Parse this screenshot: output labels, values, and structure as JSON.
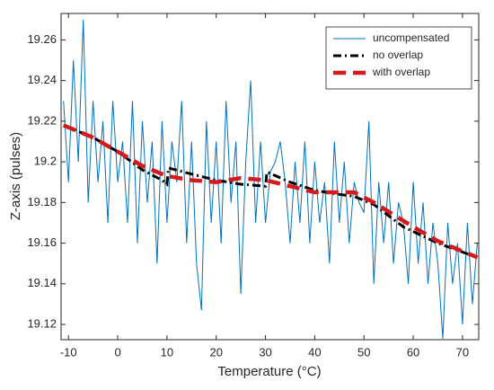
{
  "chart_data": {
    "type": "line",
    "xlabel": "Temperature (°C)",
    "ylabel": "Z-axis (pulses)",
    "xlim": [
      -11.5,
      73.3
    ],
    "ylim": [
      19.1125,
      19.273
    ],
    "xticks": [
      -10,
      0,
      10,
      20,
      30,
      40,
      50,
      60,
      70
    ],
    "yticks": [
      19.12,
      19.14,
      19.16,
      19.18,
      19.2,
      19.22,
      19.24,
      19.26
    ],
    "legend": "upper right",
    "series": [
      {
        "name": "uncompensated",
        "color": "#0072bd",
        "style": "solid",
        "x": [
          -11,
          -10,
          -9,
          -8,
          -7,
          -6,
          -5,
          -4,
          -3,
          -2,
          -1,
          0,
          1,
          2,
          3,
          4,
          5,
          6,
          7,
          8,
          9,
          10,
          11,
          12,
          13,
          14,
          15,
          16,
          17,
          18,
          19,
          20,
          21,
          22,
          23,
          24,
          25,
          26,
          27,
          28,
          29,
          30,
          31,
          32,
          33,
          34,
          35,
          36,
          37,
          38,
          39,
          40,
          41,
          42,
          43,
          44,
          45,
          46,
          47,
          48,
          49,
          50,
          51,
          52,
          53,
          54,
          55,
          56,
          57,
          58,
          59,
          60,
          61,
          62,
          63,
          64,
          65,
          66,
          67,
          68,
          69,
          70,
          71,
          72,
          73
        ],
        "values": [
          19.23,
          19.19,
          19.25,
          19.2,
          19.27,
          19.18,
          19.23,
          19.19,
          19.22,
          19.17,
          19.23,
          19.19,
          19.21,
          19.17,
          19.23,
          19.16,
          19.22,
          19.18,
          19.21,
          19.15,
          19.22,
          19.17,
          19.21,
          19.19,
          19.23,
          19.16,
          19.21,
          19.15,
          19.127,
          19.22,
          19.17,
          19.21,
          19.16,
          19.23,
          19.18,
          19.21,
          19.135,
          19.2,
          19.24,
          19.17,
          19.21,
          19.17,
          19.195,
          19.2,
          19.21,
          19.19,
          19.16,
          19.2,
          19.17,
          19.21,
          19.16,
          19.2,
          19.17,
          19.19,
          19.15,
          19.21,
          19.17,
          19.2,
          19.16,
          19.19,
          19.18,
          19.175,
          19.22,
          19.14,
          19.19,
          19.16,
          19.19,
          19.15,
          19.18,
          19.17,
          19.14,
          19.19,
          19.15,
          19.18,
          19.14,
          19.17,
          19.15,
          19.113,
          19.17,
          19.14,
          19.16,
          19.12,
          19.17,
          19.13,
          19.16
        ]
      },
      {
        "name": "no overlap",
        "color": "#000000",
        "style": "dashdot",
        "x": [
          -11,
          -5,
          0,
          5,
          9,
          10,
          10.3,
          15,
          20,
          25,
          30,
          30.3,
          35,
          40,
          45,
          48,
          52,
          58,
          65,
          73
        ],
        "values": [
          19.218,
          19.212,
          19.205,
          19.196,
          19.191,
          19.189,
          19.197,
          19.194,
          19.191,
          19.189,
          19.188,
          19.195,
          19.19,
          19.186,
          19.184,
          19.183,
          19.179,
          19.168,
          19.16,
          19.153
        ]
      },
      {
        "name": "with overlap",
        "color": "#d7191c",
        "style": "dashed",
        "x": [
          -11,
          -5,
          0,
          5,
          10,
          15,
          20,
          25,
          30,
          35,
          40,
          48,
          52,
          56,
          60,
          65,
          73
        ],
        "values": [
          19.218,
          19.212,
          19.205,
          19.198,
          19.193,
          19.191,
          19.19,
          19.192,
          19.191,
          19.188,
          19.185,
          19.185,
          19.18,
          19.174,
          19.168,
          19.161,
          19.153
        ]
      }
    ]
  }
}
